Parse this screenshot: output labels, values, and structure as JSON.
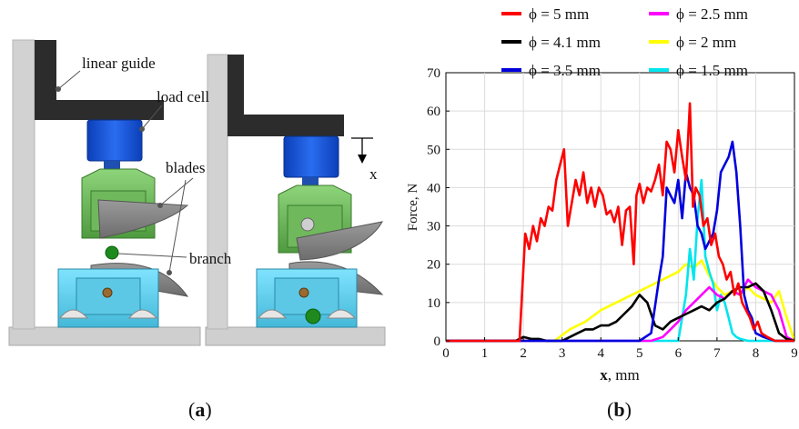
{
  "panel_a": {
    "annotations": {
      "linear_guide": "linear guide",
      "load_cell": "load cell",
      "blades": "blades",
      "branch": "branch",
      "x_arrow": "x"
    },
    "caption_letter": "a"
  },
  "panel_b": {
    "caption_letter": "b",
    "chart_data": {
      "type": "line",
      "xlabel_bold": "x",
      "xlabel_unit": ", mm",
      "ylabel": "Force, N",
      "xlim": [
        0,
        9
      ],
      "ylim": [
        0,
        70
      ],
      "xticks": [
        0,
        1,
        2,
        3,
        4,
        5,
        6,
        7,
        8,
        9
      ],
      "yticks": [
        0,
        10,
        20,
        30,
        40,
        50,
        60,
        70
      ],
      "grid": true,
      "legend_position": "top",
      "series": [
        {
          "name": "ϕ = 5 mm",
          "color": "#ff0000",
          "x": [
            0,
            1.9,
            2.05,
            2.15,
            2.25,
            2.35,
            2.45,
            2.55,
            2.65,
            2.75,
            2.85,
            2.95,
            3.05,
            3.15,
            3.25,
            3.35,
            3.45,
            3.55,
            3.65,
            3.75,
            3.85,
            3.95,
            4.05,
            4.15,
            4.25,
            4.35,
            4.45,
            4.55,
            4.65,
            4.75,
            4.85,
            4.92,
            5.0,
            5.1,
            5.2,
            5.3,
            5.4,
            5.5,
            5.6,
            5.7,
            5.8,
            5.9,
            6.0,
            6.1,
            6.2,
            6.3,
            6.38,
            6.45,
            6.55,
            6.65,
            6.75,
            6.85,
            6.95,
            7.05,
            7.15,
            7.25,
            7.35,
            7.45,
            7.55,
            7.65,
            7.75,
            7.85,
            7.95,
            8.05,
            8.15,
            8.3,
            8.5,
            9
          ],
          "values": [
            0,
            0,
            28,
            24,
            30,
            26,
            32,
            30,
            35,
            34,
            42,
            46,
            50,
            30,
            36,
            42,
            38,
            44,
            36,
            40,
            35,
            40,
            38,
            33,
            34,
            31,
            35,
            25,
            34,
            35,
            20,
            38,
            41,
            36,
            40,
            39,
            42,
            46,
            38,
            52,
            50,
            44,
            55,
            48,
            42,
            62,
            35,
            40,
            38,
            30,
            32,
            25,
            28,
            22,
            20,
            16,
            18,
            12,
            15,
            10,
            8,
            6,
            3,
            5,
            2,
            1,
            0,
            0
          ]
        },
        {
          "name": "ϕ = 4.1 mm",
          "color": "#000000",
          "x": [
            0,
            1.8,
            2.0,
            2.2,
            2.4,
            2.6,
            2.8,
            3.0,
            3.2,
            3.4,
            3.6,
            3.8,
            4.0,
            4.2,
            4.4,
            4.6,
            4.8,
            5.0,
            5.2,
            5.4,
            5.6,
            5.8,
            6.0,
            6.2,
            6.4,
            6.6,
            6.8,
            7.0,
            7.2,
            7.4,
            7.6,
            7.8,
            8.0,
            8.2,
            8.4,
            8.6,
            8.8,
            9
          ],
          "values": [
            0,
            0,
            1,
            0.5,
            0.5,
            0,
            0,
            0,
            1,
            2,
            3,
            3,
            4,
            4,
            5,
            7,
            9,
            12,
            10,
            4,
            3,
            5,
            6,
            7,
            8,
            9,
            8,
            10,
            11,
            13,
            14,
            14,
            15,
            13,
            8,
            2,
            0.5,
            0
          ]
        },
        {
          "name": "ϕ = 3.5 mm",
          "color": "#0000dd",
          "x": [
            0,
            5.0,
            5.3,
            5.5,
            5.6,
            5.7,
            5.8,
            5.9,
            6.0,
            6.1,
            6.2,
            6.3,
            6.4,
            6.5,
            6.6,
            6.7,
            6.8,
            6.9,
            7.0,
            7.1,
            7.2,
            7.3,
            7.4,
            7.5,
            7.6,
            7.7,
            7.8,
            7.9,
            8.0,
            8.2,
            8.5,
            9
          ],
          "values": [
            0,
            0,
            2,
            16,
            22,
            40,
            38,
            36,
            42,
            32,
            44,
            40,
            38,
            30,
            28,
            24,
            26,
            28,
            34,
            44,
            46,
            48,
            52,
            44,
            30,
            12,
            8,
            6,
            2,
            1,
            0,
            0
          ]
        },
        {
          "name": "ϕ = 2.5 mm",
          "color": "#ff00ff",
          "x": [
            0,
            5.3,
            5.6,
            5.8,
            6.0,
            6.2,
            6.4,
            6.6,
            6.8,
            7.0,
            7.2,
            7.4,
            7.6,
            7.8,
            8.0,
            8.2,
            8.4,
            8.6,
            8.8,
            9
          ],
          "values": [
            0,
            0,
            1,
            3,
            5,
            8,
            10,
            12,
            14,
            12,
            11,
            13,
            12,
            16,
            14,
            13,
            12,
            8,
            1,
            0
          ]
        },
        {
          "name": "ϕ = 2 mm",
          "color": "#ffff00",
          "x": [
            0,
            2.8,
            3.2,
            3.6,
            4.0,
            4.4,
            4.8,
            5.2,
            5.6,
            6.0,
            6.2,
            6.4,
            6.6,
            6.8,
            7.0,
            7.2,
            7.4,
            7.6,
            7.8,
            8.0,
            8.2,
            8.4,
            8.6,
            8.8,
            9
          ],
          "values": [
            0,
            0,
            3,
            5,
            8,
            10,
            12,
            14,
            16,
            18,
            20,
            19,
            21,
            17,
            14,
            12,
            13,
            12,
            14,
            12,
            11,
            10,
            13,
            6,
            0
          ]
        },
        {
          "name": "ϕ = 1.5 mm",
          "color": "#00e5ee",
          "x": [
            0,
            6.0,
            6.2,
            6.3,
            6.4,
            6.5,
            6.6,
            6.7,
            6.8,
            6.9,
            7.0,
            7.1,
            7.2,
            7.3,
            7.4,
            7.5,
            7.6,
            7.8,
            8.0,
            8.5,
            9
          ],
          "values": [
            0,
            0,
            12,
            24,
            16,
            32,
            42,
            22,
            18,
            15,
            8,
            12,
            10,
            6,
            2,
            1,
            0.5,
            0,
            0,
            0,
            0
          ]
        }
      ]
    }
  }
}
